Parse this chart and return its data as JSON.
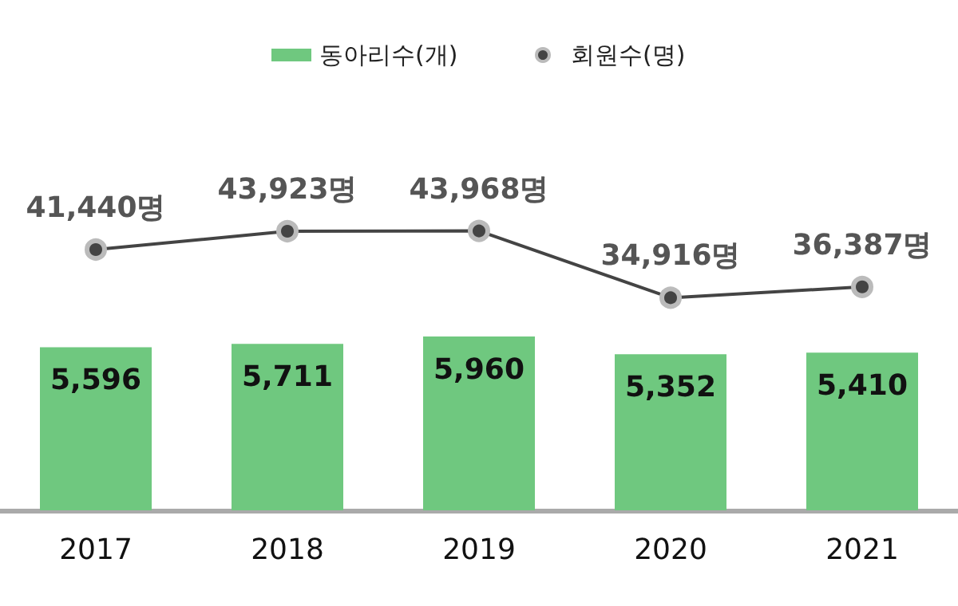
{
  "chart_data": [
    {
      "type": "bar",
      "categories": [
        "2017",
        "2018",
        "2019",
        "2020",
        "2021"
      ],
      "series": [
        {
          "name": "동아리수(개)",
          "color": "#6fc87f",
          "values": [
            5596,
            5711,
            5960,
            5352,
            5410
          ],
          "value_labels": [
            "5,596",
            "5,711",
            "5,960",
            "5,352",
            "5,410"
          ]
        }
      ],
      "tick_labels": "x",
      "grid": false,
      "legend": "top"
    },
    {
      "type": "line",
      "categories": [
        "2017",
        "2018",
        "2019",
        "2020",
        "2021"
      ],
      "series": [
        {
          "name": "회원수(명)",
          "color": "#444444",
          "values": [
            41440,
            43923,
            43968,
            34916,
            36387
          ],
          "value_labels": [
            "41,440명",
            "43,923명",
            "43,968명",
            "34,916명",
            "36,387명"
          ]
        }
      ],
      "tick_labels": false,
      "grid": false,
      "legend": "top",
      "marker": "circle"
    }
  ]
}
